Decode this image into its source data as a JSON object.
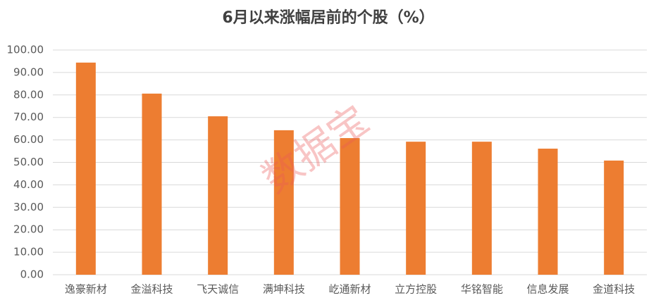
{
  "chart_data": {
    "type": "bar",
    "title": "6月以来涨幅居前的个股（%）",
    "categories": [
      "逸豪新材",
      "金溢科技",
      "飞天诚信",
      "满坤科技",
      "屹通新材",
      "立方控股",
      "华铭智能",
      "信息发展",
      "金道科技"
    ],
    "values": [
      94.4,
      80.6,
      70.5,
      64.3,
      60.8,
      59.2,
      59.2,
      56.1,
      50.8
    ],
    "color": "#ed7d31",
    "ylim": [
      0,
      100
    ],
    "yticks": [
      {
        "value": 0,
        "label": "0.00"
      },
      {
        "value": 10,
        "label": "10.00"
      },
      {
        "value": 20,
        "label": "20.00"
      },
      {
        "value": 30,
        "label": "30.00"
      },
      {
        "value": 40,
        "label": "40.00"
      },
      {
        "value": 50,
        "label": "50.00"
      },
      {
        "value": 60,
        "label": "60.00"
      },
      {
        "value": 70,
        "label": "70.00"
      },
      {
        "value": 80,
        "label": "80.00"
      },
      {
        "value": 90,
        "label": "90.00"
      },
      {
        "value": 100,
        "label": "100.00"
      }
    ],
    "grid": true,
    "watermark": "数据宝"
  }
}
